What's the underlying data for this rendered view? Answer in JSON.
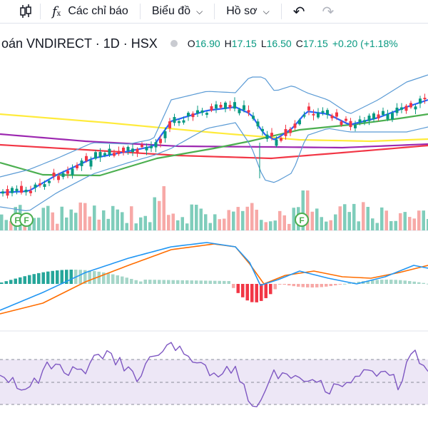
{
  "toolbar": {
    "indicators_label": "Các chỉ báo",
    "chart_label": "Biểu đồ",
    "profile_label": "Hồ sơ"
  },
  "symbol": {
    "title": "oán VNDIRECT · 1D · HSX",
    "open_key": "O",
    "open": "16.90",
    "high_key": "H",
    "high": "17.15",
    "low_key": "L",
    "low": "16.50",
    "close_key": "C",
    "close": "17.15",
    "change": "+0.20 (+1.18%"
  },
  "events": [
    "F",
    "F",
    "F"
  ],
  "colors": {
    "up": "#089981",
    "down": "#f23645",
    "vol_up": "#7fcdbb",
    "vol_down": "#f7a9a7",
    "bb": "#2962ff",
    "ma_yellow": "#ffeb3b",
    "ma_purple": "#9c27b0",
    "ma_red": "#f23645",
    "ma_green": "#4caf50",
    "macd": "#2196f3",
    "signal": "#ff6d00",
    "rsi": "#7e57c2"
  }
}
